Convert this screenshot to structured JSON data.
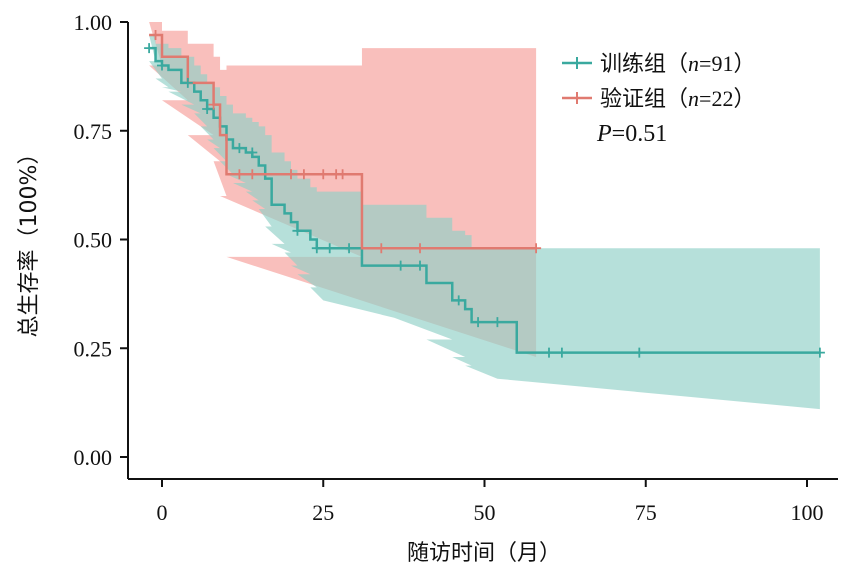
{
  "chart_data": {
    "type": "line",
    "subtype": "kaplan-meier survival curves with confidence bands",
    "xlabel": "随访时间（月）",
    "ylabel": "总生存率（100%）",
    "xlim": [
      -3,
      103
    ],
    "ylim": [
      -0.04,
      1.0
    ],
    "xticks": [
      0,
      25,
      50,
      75,
      100
    ],
    "xtick_labels": [
      "0",
      "25",
      "50",
      "75",
      "100"
    ],
    "yticks": [
      0.0,
      0.25,
      0.5,
      0.75,
      1.0
    ],
    "ytick_labels": [
      "0.00",
      "0.25",
      "0.50",
      "0.75",
      "1.00"
    ],
    "grid": false,
    "legend_position": "top-right",
    "annotation": {
      "prefix": "P",
      "value": "=0.51"
    },
    "series": [
      {
        "name": "训练组",
        "legend_n": "91",
        "color": "#3aa99f",
        "band_color": "#8fd0c6",
        "step_x": [
          -2,
          -1,
          0,
          1,
          3,
          5,
          6,
          7,
          8,
          9,
          10,
          11,
          13,
          14,
          15,
          16,
          17,
          19,
          20,
          21,
          23,
          24,
          25,
          31,
          36,
          41,
          45,
          47,
          48,
          52,
          55,
          102
        ],
        "step_y": [
          0.94,
          0.91,
          0.9,
          0.89,
          0.86,
          0.84,
          0.82,
          0.8,
          0.78,
          0.76,
          0.73,
          0.71,
          0.7,
          0.69,
          0.67,
          0.64,
          0.58,
          0.56,
          0.54,
          0.52,
          0.5,
          0.48,
          0.48,
          0.44,
          0.44,
          0.4,
          0.36,
          0.34,
          0.31,
          0.31,
          0.24,
          0.24
        ],
        "band_lower": [
          0.91,
          0.87,
          0.85,
          0.84,
          0.81,
          0.79,
          0.76,
          0.73,
          0.71,
          0.68,
          0.65,
          0.63,
          0.61,
          0.59,
          0.57,
          0.53,
          0.49,
          0.47,
          0.44,
          0.42,
          0.39,
          0.36,
          0.36,
          0.32,
          0.32,
          0.27,
          0.23,
          0.21,
          0.18,
          0.18,
          0.11,
          0.11
        ],
        "band_upper": [
          0.97,
          0.95,
          0.95,
          0.94,
          0.92,
          0.9,
          0.88,
          0.86,
          0.85,
          0.83,
          0.81,
          0.79,
          0.78,
          0.77,
          0.76,
          0.74,
          0.7,
          0.68,
          0.66,
          0.64,
          0.62,
          0.61,
          0.61,
          0.58,
          0.58,
          0.55,
          0.52,
          0.51,
          0.48,
          0.48,
          0.48,
          0.48
        ],
        "censor_x": [
          -2,
          0,
          4,
          7,
          12,
          14,
          21,
          24,
          26,
          29,
          37,
          40,
          46,
          49,
          52,
          60,
          62,
          74,
          102
        ],
        "censor_y": [
          0.94,
          0.9,
          0.86,
          0.8,
          0.71,
          0.7,
          0.52,
          0.48,
          0.48,
          0.48,
          0.44,
          0.44,
          0.36,
          0.31,
          0.31,
          0.24,
          0.24,
          0.24,
          0.24
        ]
      },
      {
        "name": "验证组",
        "legend_n": "22",
        "color": "#e07a70",
        "band_color": "#f7aaa5",
        "step_x": [
          -2,
          0,
          4,
          8,
          9,
          10,
          31,
          58
        ],
        "step_y": [
          0.97,
          0.92,
          0.86,
          0.81,
          0.74,
          0.65,
          0.48,
          0.48
        ],
        "band_lower": [
          0.9,
          0.82,
          0.74,
          0.68,
          0.6,
          0.46,
          0.23,
          0.23
        ],
        "band_upper": [
          1.0,
          0.98,
          0.95,
          0.92,
          0.89,
          0.9,
          0.94,
          0.94
        ],
        "censor_x": [
          -1,
          8,
          12,
          14,
          20,
          22,
          25,
          27,
          28,
          34,
          40,
          58
        ],
        "censor_y": [
          0.97,
          0.81,
          0.65,
          0.65,
          0.65,
          0.65,
          0.65,
          0.65,
          0.65,
          0.48,
          0.48,
          0.48
        ]
      }
    ]
  }
}
